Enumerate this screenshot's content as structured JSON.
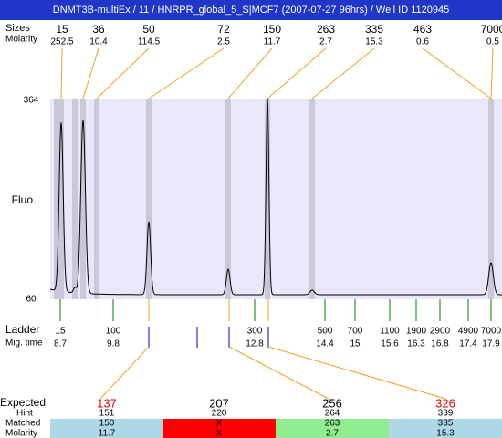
{
  "header": {
    "title": "DNMT3B-multiEx / 11 / HNRPR_global_5_S|MCF7 (2007-07-27 96hrs) / Well ID 1120945"
  },
  "peaks": {
    "size_label": "Sizes",
    "molarity_label": "Molarity",
    "items": [
      {
        "size": "15",
        "molarity": "252.5"
      },
      {
        "size": "36",
        "molarity": "10.4"
      },
      {
        "size": "50",
        "molarity": "114.5"
      },
      {
        "size": "72",
        "molarity": "2.5"
      },
      {
        "size": "150",
        "molarity": "11.7"
      },
      {
        "size": "263",
        "molarity": "2.7"
      },
      {
        "size": "335",
        "molarity": "15.3"
      },
      {
        "size": "463",
        "molarity": "0.6"
      },
      {
        "size": "7000",
        "molarity": "0.5"
      }
    ]
  },
  "plot": {
    "y_label": "Fluo.",
    "y_top": "364",
    "y_bottom": "60"
  },
  "ladder": {
    "label": "Ladder",
    "mig_label": "Mig. time",
    "items": [
      {
        "size": "15",
        "mig": "8.7"
      },
      {
        "size": "100",
        "mig": "9.8"
      },
      {
        "size": "300",
        "mig": "12.8"
      },
      {
        "size": "500",
        "mig": "14.4"
      },
      {
        "size": "700",
        "mig": "15"
      },
      {
        "size": "1100",
        "mig": "15.6"
      },
      {
        "size": "1900",
        "mig": "16.3"
      },
      {
        "size": "2900",
        "mig": "16.8"
      },
      {
        "size": "4900",
        "mig": "17.4"
      },
      {
        "size": "7000",
        "mig": "17.9"
      }
    ]
  },
  "expected": {
    "expected_label": "Expected",
    "hint_label": "Hint",
    "matched_label": "Matched",
    "molarity_label": "Molarity",
    "columns": [
      {
        "expected": "137",
        "hint": "151",
        "matched": "150",
        "molarity": "11.7"
      },
      {
        "expected": "207",
        "hint": "220",
        "matched": "X",
        "molarity": "X"
      },
      {
        "expected": "256",
        "hint": "264",
        "matched": "263",
        "molarity": "2.7"
      },
      {
        "expected": "326",
        "hint": "339",
        "matched": "335",
        "molarity": "15.3"
      }
    ]
  }
}
